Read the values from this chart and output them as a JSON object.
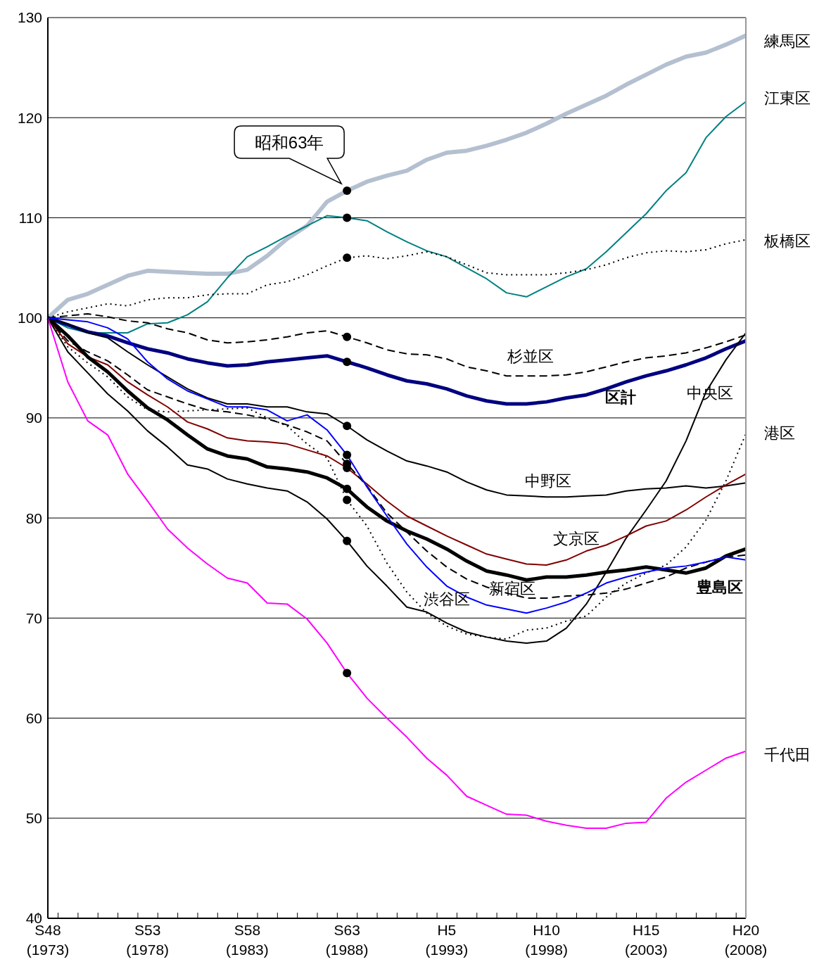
{
  "chart_data": {
    "type": "line",
    "categories": [
      "S48\n(1973)",
      null,
      null,
      null,
      null,
      "S53\n(1978)",
      null,
      null,
      null,
      null,
      "S58\n(1983)",
      null,
      null,
      null,
      null,
      "S63\n(1988)",
      null,
      null,
      null,
      null,
      "H5\n(1993)",
      null,
      null,
      null,
      null,
      "H10\n(1998)",
      null,
      null,
      null,
      null,
      "H15\n(2003)",
      null,
      null,
      null,
      null,
      "H20\n(2008)"
    ],
    "ylim": [
      40,
      130
    ],
    "yticks": [
      40,
      50,
      60,
      70,
      80,
      90,
      100,
      110,
      120,
      130
    ],
    "grid": "y",
    "legend": false,
    "line_style": "solid",
    "annotations": [
      {
        "text": "昭和63年",
        "x": "S63\n(1988)",
        "y": 112.7
      }
    ],
    "series": [
      {
        "name": "練馬区",
        "color": "#b4c0d0",
        "values": [
          100,
          101.8,
          102.4,
          103.3,
          104.2,
          104.7,
          104.6,
          104.5,
          104.4,
          104.4,
          104.8,
          106.2,
          107.9,
          109.2,
          111.6,
          112.7,
          113.6,
          114.2,
          114.7,
          115.8,
          116.5,
          116.7,
          117.2,
          117.8,
          118.5,
          119.4,
          120.4,
          121.3,
          122.2,
          123.3,
          124.3,
          125.3,
          126.1,
          126.5,
          127.3,
          128.2
        ]
      },
      {
        "name": "江東区",
        "color": "#008080",
        "values": [
          100,
          99.0,
          98.5,
          98.5,
          98.5,
          99.4,
          99.5,
          100.3,
          101.6,
          104.0,
          106.1,
          107.1,
          108.2,
          109.2,
          110.2,
          110.0,
          109.7,
          108.6,
          107.6,
          106.7,
          106.1,
          105.0,
          103.9,
          102.5,
          102.1,
          103.1,
          104.1,
          104.9,
          106.6,
          108.5,
          110.4,
          112.7,
          114.5,
          118.0,
          120.1,
          121.6
        ]
      },
      {
        "name": "板橋区",
        "color": "#000000",
        "line_style": "dotted",
        "values": [
          100,
          100.6,
          101.0,
          101.4,
          101.2,
          101.8,
          102.0,
          102.0,
          102.3,
          102.4,
          102.4,
          103.3,
          103.6,
          104.3,
          105.2,
          106.0,
          106.2,
          105.9,
          106.2,
          106.6,
          106.1,
          105.3,
          104.5,
          104.3,
          104.3,
          104.3,
          104.5,
          104.8,
          105.3,
          106.0,
          106.5,
          106.7,
          106.6,
          106.8,
          107.4,
          107.8
        ]
      },
      {
        "name": "杉並区",
        "color": "#000000",
        "line_style": "dashed",
        "values": [
          100,
          100.2,
          100.4,
          100.1,
          99.7,
          99.5,
          98.9,
          98.5,
          97.8,
          97.5,
          97.6,
          97.8,
          98.1,
          98.5,
          98.7,
          98.1,
          97.5,
          96.8,
          96.4,
          96.3,
          95.9,
          95.1,
          94.7,
          94.2,
          94.2,
          94.2,
          94.3,
          94.6,
          95.1,
          95.6,
          96.0,
          96.2,
          96.5,
          97.0,
          97.6,
          98.3
        ]
      },
      {
        "name": "区計",
        "color": "#000080",
        "values": [
          100,
          99.3,
          98.6,
          98.2,
          97.5,
          96.9,
          96.5,
          95.9,
          95.5,
          95.2,
          95.3,
          95.6,
          95.8,
          96.0,
          96.2,
          95.6,
          95.0,
          94.3,
          93.7,
          93.4,
          92.9,
          92.2,
          91.7,
          91.4,
          91.4,
          91.6,
          92.0,
          92.3,
          92.9,
          93.6,
          94.2,
          94.7,
          95.3,
          96.0,
          96.9,
          97.7
        ]
      },
      {
        "name": "中央区",
        "color": "#000000",
        "values": [
          100,
          96.6,
          94.5,
          92.4,
          90.7,
          88.7,
          87.1,
          85.3,
          84.9,
          83.9,
          83.4,
          83.0,
          82.7,
          81.6,
          79.9,
          77.7,
          75.2,
          73.2,
          71.1,
          70.6,
          69.5,
          68.6,
          68.1,
          67.7,
          67.5,
          67.7,
          69.0,
          71.4,
          74.6,
          78.0,
          80.8,
          83.7,
          87.7,
          92.6,
          95.8,
          98.5
        ]
      },
      {
        "name": "中野区",
        "color": "#000000",
        "values": [
          100,
          99.4,
          98.5,
          98.0,
          96.6,
          95.3,
          94.1,
          92.9,
          92.0,
          91.4,
          91.4,
          91.1,
          91.1,
          90.6,
          90.4,
          89.2,
          87.8,
          86.7,
          85.7,
          85.2,
          84.6,
          83.6,
          82.8,
          82.3,
          82.2,
          82.1,
          82.1,
          82.2,
          82.3,
          82.7,
          82.9,
          83.0,
          83.2,
          83.0,
          83.2,
          83.5
        ]
      },
      {
        "name": "港区",
        "color": "#000000",
        "line_style": "dotted",
        "values": [
          100,
          97.1,
          95.5,
          94.1,
          92.1,
          90.8,
          90.6,
          90.7,
          90.8,
          90.9,
          91.0,
          90.0,
          89.2,
          87.4,
          86.0,
          81.8,
          79.2,
          75.5,
          72.6,
          70.5,
          69.2,
          68.4,
          68.1,
          67.9,
          68.8,
          69.0,
          69.7,
          70.2,
          72.1,
          73.5,
          74.5,
          75.3,
          77.1,
          79.8,
          83.7,
          88.4
        ]
      },
      {
        "name": "文京区",
        "color": "#800000",
        "values": [
          100,
          97.4,
          96.1,
          95.3,
          93.6,
          92.3,
          91.1,
          89.6,
          88.9,
          88.0,
          87.7,
          87.6,
          87.4,
          86.8,
          86.2,
          85.0,
          83.4,
          81.7,
          80.2,
          79.2,
          78.2,
          77.3,
          76.4,
          75.9,
          75.4,
          75.3,
          75.8,
          76.7,
          77.3,
          78.2,
          79.2,
          79.7,
          80.8,
          82.1,
          83.3,
          84.4
        ]
      },
      {
        "name": "豊島区",
        "color": "#000000",
        "values": [
          100,
          98.2,
          96.1,
          94.6,
          92.7,
          91.0,
          89.8,
          88.3,
          86.9,
          86.2,
          85.9,
          85.1,
          84.9,
          84.6,
          84.0,
          82.9,
          81.1,
          79.7,
          78.7,
          77.9,
          76.9,
          75.7,
          74.7,
          74.3,
          73.8,
          74.1,
          74.1,
          74.3,
          74.6,
          74.8,
          75.1,
          74.8,
          74.5,
          75.0,
          76.2,
          76.9
        ]
      },
      {
        "name": "新宿区",
        "color": "#000000",
        "line_style": "dashed",
        "values": [
          100,
          97.7,
          96.6,
          95.7,
          94.3,
          92.8,
          92.1,
          91.4,
          90.8,
          90.6,
          90.3,
          89.9,
          89.3,
          88.6,
          87.7,
          85.4,
          83.2,
          80.5,
          78.6,
          76.7,
          75.1,
          73.9,
          73.1,
          72.5,
          72.0,
          72.0,
          72.2,
          72.3,
          72.5,
          72.9,
          73.5,
          74.1,
          75.0,
          75.6,
          76.1,
          76.3
        ]
      },
      {
        "name": "渋谷区",
        "color": "#0000ff",
        "values": [
          100,
          99.8,
          99.6,
          99.0,
          97.9,
          95.6,
          93.9,
          92.7,
          91.9,
          91.1,
          91.1,
          90.8,
          89.7,
          90.3,
          88.8,
          86.3,
          83.1,
          80.2,
          77.4,
          75.1,
          73.2,
          72.1,
          71.3,
          70.9,
          70.5,
          71.0,
          71.6,
          72.5,
          73.5,
          74.1,
          74.6,
          75.0,
          75.2,
          75.6,
          76.1,
          75.8
        ]
      },
      {
        "name": "千代田",
        "color": "#ff00ff",
        "values": [
          100,
          93.6,
          89.7,
          88.3,
          84.4,
          81.7,
          78.9,
          77.0,
          75.4,
          74.0,
          73.5,
          71.5,
          71.4,
          69.9,
          67.5,
          64.5,
          62.0,
          60.0,
          58.1,
          56.0,
          54.3,
          52.2,
          51.3,
          50.4,
          50.3,
          49.7,
          49.3,
          49.0,
          49.0,
          49.5,
          49.6,
          52.0,
          53.6,
          54.8,
          56.0,
          56.7
        ]
      }
    ]
  }
}
